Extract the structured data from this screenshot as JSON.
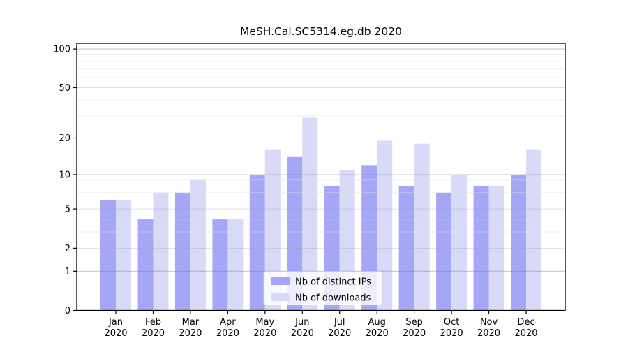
{
  "chart_data": {
    "type": "bar",
    "title": "MeSH.Cal.SC5314.eg.db 2020",
    "categories": [
      "Jan",
      "Feb",
      "Mar",
      "Apr",
      "May",
      "Jun",
      "Jul",
      "Aug",
      "Sep",
      "Oct",
      "Nov",
      "Dec"
    ],
    "year_label": "2020",
    "series": [
      {
        "name": "Nb of distinct IPs",
        "color": "#a6a6f7",
        "values": [
          6,
          4,
          7,
          4,
          10,
          14,
          8,
          12,
          8,
          7,
          8,
          10
        ]
      },
      {
        "name": "Nb of downloads",
        "color": "#d9d9f8",
        "values": [
          6,
          7,
          9,
          4,
          16,
          29,
          11,
          19,
          18,
          10,
          8,
          16
        ]
      }
    ],
    "yscale": "log1p",
    "ylim": [
      0,
      110
    ],
    "yticks_labeled": [
      0,
      1,
      2,
      5,
      10,
      20,
      50,
      100
    ],
    "gridlines": {
      "major": [
        1,
        10,
        100
      ],
      "mid": [
        2,
        5,
        20,
        50
      ],
      "minor": [
        3,
        4,
        6,
        7,
        8,
        9,
        30,
        40,
        60,
        70,
        80,
        90
      ]
    },
    "grid": "on",
    "legend_position": "lower center",
    "xlabel": "",
    "ylabel": ""
  },
  "style": {
    "grid_major_color": "rgba(120,120,120,0.40)",
    "grid_mid_color": "rgba(160,160,160,0.33)",
    "grid_minor_color": "rgba(225,225,225,0.55)",
    "spine_color": "#000000",
    "legend_bg": "rgba(255,255,255,0.8)",
    "legend_border": "#cccccc"
  }
}
